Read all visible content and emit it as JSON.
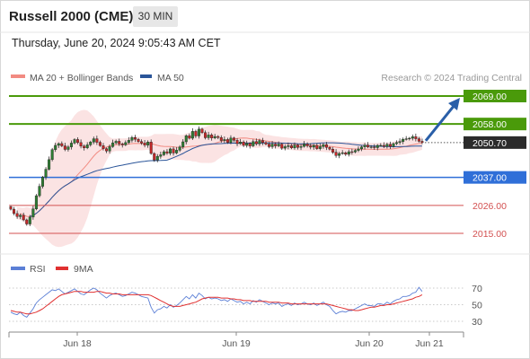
{
  "header": {
    "title": "Russell 2000 (CME)",
    "timeframe": "30 MIN",
    "datetime": "Thursday, June 20, 2024 9:05:43 AM CET"
  },
  "legend": {
    "items": [
      {
        "label": "MA 20 + Bollinger Bands",
        "color": "#f28b82"
      },
      {
        "label": "MA 50",
        "color": "#2a5599"
      }
    ],
    "credit": "Research © 2024 Trading Central"
  },
  "rsi_legend": {
    "items": [
      {
        "label": "RSI",
        "color": "#5b7fd6"
      },
      {
        "label": "9MA",
        "color": "#e03030"
      }
    ]
  },
  "colors": {
    "resistance": "#4a9a0a",
    "support": "#2f6fd8",
    "support_minor": "#d35050",
    "last_price": "#2b2b2b",
    "arrow": "#2a5fa8",
    "candle_up": "#2e7d32",
    "candle_down": "#c62828",
    "bb_fill": "#fbe3e3",
    "ma20": "#f28b82",
    "ma50": "#2a5599"
  },
  "chart_data": [
    {
      "type": "candlestick",
      "title": "Russell 2000 (CME)",
      "x_ticks": [
        "Jun 18",
        "Jun 19",
        "Jun 20",
        "Jun 21"
      ],
      "ylim": [
        2010,
        2072
      ],
      "levels": [
        {
          "value": 2069.0,
          "label": "2069.00",
          "kind": "resistance"
        },
        {
          "value": 2058.0,
          "label": "2058.00",
          "kind": "resistance"
        },
        {
          "value": 2050.7,
          "label": "2050.70",
          "kind": "last"
        },
        {
          "value": 2037.0,
          "label": "2037.00",
          "kind": "support"
        },
        {
          "value": 2026.0,
          "label": "2026.00",
          "kind": "support-minor"
        },
        {
          "value": 2015.0,
          "label": "2015.00",
          "kind": "support-minor"
        }
      ],
      "arrow": {
        "from": 2050.7,
        "to": 2069.0
      },
      "series": [
        {
          "name": "MA 20 + Bollinger Bands"
        },
        {
          "name": "MA 50"
        }
      ],
      "close": [
        2024.5,
        2022.8,
        2021.6,
        2022.1,
        2020.3,
        2018.7,
        2021.4,
        2024.6,
        2029.8,
        2033.5,
        2037.1,
        2040.2,
        2044.0,
        2047.9,
        2049.6,
        2050.3,
        2049.4,
        2048.0,
        2049.0,
        2050.5,
        2051.9,
        2050.7,
        2049.3,
        2048.6,
        2049.8,
        2050.9,
        2052.2,
        2050.8,
        2049.5,
        2048.3,
        2047.4,
        2049.1,
        2050.6,
        2051.2,
        2050.2,
        2049.8,
        2050.7,
        2051.6,
        2052.7,
        2052.0,
        2051.1,
        2050.5,
        2049.7,
        2050.9,
        2046.4,
        2043.8,
        2045.3,
        2045.9,
        2047.1,
        2046.5,
        2048.2,
        2046.6,
        2047.7,
        2049.0,
        2051.0,
        2053.4,
        2052.4,
        2055.1,
        2053.3,
        2056.0,
        2054.6,
        2052.6,
        2053.7,
        2052.5,
        2053.1,
        2052.7,
        2051.5,
        2051.9,
        2050.7,
        2052.5,
        2051.6,
        2050.3,
        2050.9,
        2049.6,
        2050.4,
        2049.4,
        2051.1,
        2050.2,
        2051.5,
        2050.7,
        2050.1,
        2049.1,
        2050.1,
        2049.4,
        2050.1,
        2048.5,
        2049.1,
        2049.5,
        2048.6,
        2049.7,
        2048.8,
        2049.2,
        2050.1,
        2049.4,
        2048.9,
        2049.6,
        2048.3,
        2049.1,
        2049.9,
        2048.8,
        2048.1,
        2046.9,
        2045.6,
        2046.4,
        2046.7,
        2046.1,
        2047.1,
        2047.0,
        2047.6,
        2048.2,
        2049.0,
        2049.7,
        2049.0,
        2049.0,
        2048.7,
        2049.6,
        2049.6,
        2049.2,
        2050.0,
        2049.2,
        2050.3,
        2050.7,
        2051.1,
        2052.0,
        2052.2,
        2052.4,
        2053.0,
        2052.2,
        2051.2,
        2050.7
      ],
      "rsi": {
        "ylim": [
          22,
          78
        ],
        "ticks": [
          70,
          50,
          30
        ],
        "series": [
          {
            "name": "RSI"
          },
          {
            "name": "9MA"
          }
        ],
        "values": [
          41,
          39,
          38,
          41,
          37,
          35,
          40,
          45,
          52,
          56,
          59,
          62,
          65,
          68,
          67,
          69,
          66,
          63,
          65,
          67,
          69,
          66,
          63,
          62,
          65,
          68,
          70,
          68,
          64,
          61,
          58,
          61,
          63,
          64,
          62,
          60,
          61,
          63,
          65,
          64,
          62,
          60,
          59,
          58,
          47,
          40,
          44,
          45,
          48,
          46,
          50,
          47,
          49,
          52,
          56,
          60,
          57,
          62,
          58,
          64,
          61,
          57,
          59,
          57,
          58,
          57,
          55,
          56,
          54,
          57,
          55,
          53,
          54,
          51,
          53,
          51,
          55,
          53,
          56,
          54,
          52,
          50,
          52,
          51,
          52,
          48,
          50,
          51,
          49,
          52,
          50,
          51,
          53,
          51,
          50,
          52,
          49,
          51,
          53,
          50,
          48,
          43,
          39,
          41,
          42,
          41,
          43,
          43,
          45,
          47,
          49,
          51,
          49,
          49,
          48,
          51,
          51,
          50,
          53,
          51,
          54,
          56,
          57,
          60,
          60,
          61,
          64,
          65,
          71,
          66
        ],
        "ma": [
          43,
          42,
          41,
          41,
          40,
          39,
          39,
          40,
          41,
          43,
          45,
          48,
          51,
          54,
          57,
          60,
          62,
          63,
          64,
          65,
          66,
          66,
          66,
          65,
          65,
          65,
          65,
          66,
          66,
          65,
          64,
          64,
          63,
          63,
          63,
          62,
          62,
          62,
          62,
          62,
          62,
          62,
          62,
          62,
          61,
          59,
          57,
          55,
          53,
          51,
          49,
          48,
          48,
          48,
          49,
          50,
          51,
          52,
          53,
          55,
          57,
          58,
          59,
          59,
          59,
          59,
          58,
          58,
          58,
          57,
          57,
          56,
          56,
          55,
          55,
          55,
          54,
          54,
          54,
          54,
          54,
          53,
          53,
          53,
          53,
          52,
          52,
          52,
          51,
          51,
          51,
          51,
          51,
          51,
          51,
          51,
          51,
          51,
          51,
          51,
          50,
          49,
          48,
          47,
          46,
          45,
          44,
          44,
          43,
          43,
          44,
          45,
          46,
          47,
          47,
          48,
          49,
          49,
          50,
          50,
          51,
          52,
          53,
          54,
          55,
          56,
          57,
          59,
          60,
          62
        ]
      }
    }
  ]
}
